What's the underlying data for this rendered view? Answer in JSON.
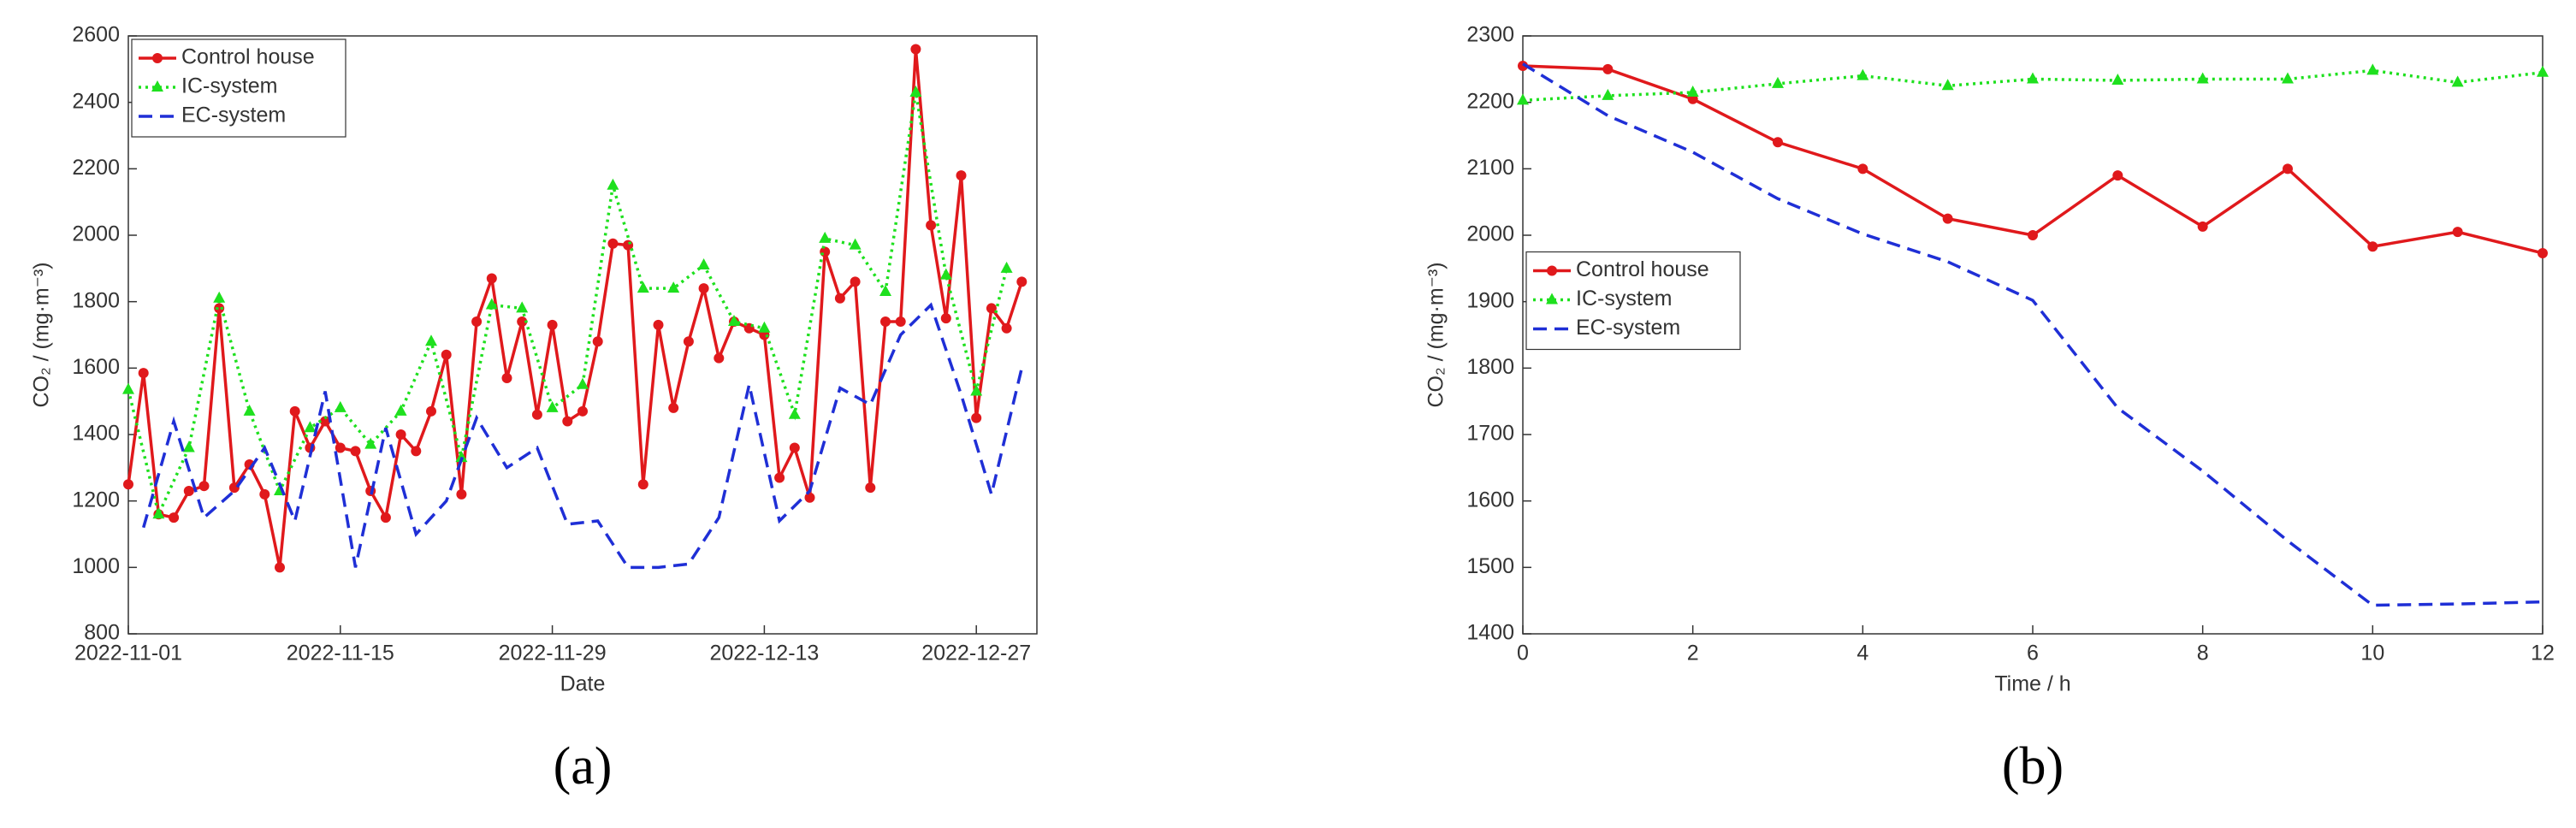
{
  "chart_data": [
    {
      "type": "line",
      "caption": "(a)",
      "xlabel": "Date",
      "ylabel": "CO₂ / (mg·m⁻³)",
      "xlim": [
        "2022-11-01",
        "2022-12-31"
      ],
      "xticks": [
        "2022-11-01",
        "2022-11-15",
        "2022-11-29",
        "2022-12-13",
        "2022-12-27"
      ],
      "ylim": [
        800,
        2600
      ],
      "yticks": [
        800,
        1000,
        1200,
        1400,
        1600,
        1800,
        2000,
        2200,
        2400,
        2600
      ],
      "legend": "upper left",
      "series": [
        {
          "name": "Control house",
          "color": "#e0191c",
          "marker": "circle",
          "linestyle": "solid",
          "x": [
            "2022-11-01",
            "2022-11-02",
            "2022-11-03",
            "2022-11-04",
            "2022-11-05",
            "2022-11-06",
            "2022-11-07",
            "2022-11-08",
            "2022-11-09",
            "2022-11-10",
            "2022-11-11",
            "2022-11-12",
            "2022-11-13",
            "2022-11-14",
            "2022-11-15",
            "2022-11-16",
            "2022-11-17",
            "2022-11-18",
            "2022-11-19",
            "2022-11-20",
            "2022-11-21",
            "2022-11-22",
            "2022-11-23",
            "2022-11-24",
            "2022-11-25",
            "2022-11-26",
            "2022-11-27",
            "2022-11-28",
            "2022-11-29",
            "2022-11-30",
            "2022-12-01",
            "2022-12-02",
            "2022-12-03",
            "2022-12-04",
            "2022-12-05",
            "2022-12-06",
            "2022-12-07",
            "2022-12-08",
            "2022-12-09",
            "2022-12-10",
            "2022-12-11",
            "2022-12-12",
            "2022-12-13",
            "2022-12-14",
            "2022-12-15",
            "2022-12-16",
            "2022-12-17",
            "2022-12-18",
            "2022-12-19",
            "2022-12-20",
            "2022-12-21",
            "2022-12-22",
            "2022-12-23",
            "2022-12-24",
            "2022-12-25",
            "2022-12-26",
            "2022-12-27",
            "2022-12-28",
            "2022-12-29",
            "2022-12-30"
          ],
          "values": [
            1250,
            1585,
            1160,
            1150,
            1230,
            1245,
            1780,
            1240,
            1310,
            1220,
            1000,
            1470,
            1360,
            1440,
            1360,
            1350,
            1230,
            1150,
            1400,
            1350,
            1470,
            1640,
            1220,
            1740,
            1870,
            1570,
            1740,
            1460,
            1730,
            1440,
            1470,
            1680,
            1975,
            1970,
            1250,
            1730,
            1480,
            1680,
            1840,
            1630,
            1740,
            1720,
            1700,
            1270,
            1360,
            1210,
            1950,
            1810,
            1860,
            1240,
            1740,
            1740,
            2560,
            2030,
            1750,
            2180,
            1450,
            1780,
            1720,
            1860
          ]
        },
        {
          "name": "IC-system",
          "color": "#1ee01e",
          "marker": "triangle",
          "linestyle": "dotted",
          "x": [
            "2022-11-01",
            "2022-11-03",
            "2022-11-05",
            "2022-11-07",
            "2022-11-09",
            "2022-11-11",
            "2022-11-13",
            "2022-11-15",
            "2022-11-17",
            "2022-11-19",
            "2022-11-21",
            "2022-11-23",
            "2022-11-25",
            "2022-11-27",
            "2022-11-29",
            "2022-12-01",
            "2022-12-03",
            "2022-12-05",
            "2022-12-07",
            "2022-12-09",
            "2022-12-11",
            "2022-12-13",
            "2022-12-15",
            "2022-12-17",
            "2022-12-19",
            "2022-12-21",
            "2022-12-23",
            "2022-12-25",
            "2022-12-27",
            "2022-12-29"
          ],
          "values": [
            1535,
            1160,
            1360,
            1810,
            1470,
            1230,
            1420,
            1480,
            1370,
            1470,
            1680,
            1330,
            1790,
            1780,
            1480,
            1550,
            2150,
            1840,
            1840,
            1910,
            1740,
            1720,
            1460,
            1990,
            1970,
            1830,
            2430,
            1880,
            1530,
            1900
          ]
        },
        {
          "name": "EC-system",
          "color": "#1f2fd6",
          "marker": "none",
          "linestyle": "dashed",
          "x": [
            "2022-11-02",
            "2022-11-04",
            "2022-11-06",
            "2022-11-08",
            "2022-11-10",
            "2022-11-12",
            "2022-11-14",
            "2022-11-16",
            "2022-11-18",
            "2022-11-20",
            "2022-11-22",
            "2022-11-24",
            "2022-11-26",
            "2022-11-28",
            "2022-11-30",
            "2022-12-02",
            "2022-12-04",
            "2022-12-06",
            "2022-12-08",
            "2022-12-10",
            "2022-12-12",
            "2022-12-14",
            "2022-12-16",
            "2022-12-18",
            "2022-12-20",
            "2022-12-22",
            "2022-12-24",
            "2022-12-26",
            "2022-12-28",
            "2022-12-30"
          ],
          "values": [
            1120,
            1440,
            1150,
            1230,
            1360,
            1140,
            1530,
            1000,
            1420,
            1100,
            1200,
            1450,
            1300,
            1360,
            1130,
            1140,
            1000,
            1000,
            1010,
            1150,
            1550,
            1140,
            1230,
            1540,
            1490,
            1700,
            1790,
            1520,
            1220,
            1600
          ]
        }
      ]
    },
    {
      "type": "line",
      "caption": "(b)",
      "xlabel": "Time / h",
      "ylabel": "CO₂ / (mg·m⁻³)",
      "xlim": [
        0,
        12
      ],
      "xticks": [
        0,
        2,
        4,
        6,
        8,
        10,
        12
      ],
      "ylim": [
        1400,
        2300
      ],
      "yticks": [
        1400,
        1500,
        1600,
        1700,
        1800,
        1900,
        2000,
        2100,
        2200,
        2300
      ],
      "legend": "center left",
      "series": [
        {
          "name": "Control house",
          "color": "#e0191c",
          "marker": "circle",
          "linestyle": "solid",
          "x": [
            0,
            1,
            2,
            3,
            4,
            5,
            6,
            7,
            8,
            9,
            10,
            11,
            12
          ],
          "values": [
            2255,
            2250,
            2205,
            2140,
            2100,
            2025,
            2000,
            2090,
            2013,
            2100,
            1983,
            2005,
            1973
          ]
        },
        {
          "name": "IC-system",
          "color": "#1ee01e",
          "marker": "triangle",
          "linestyle": "dotted",
          "x": [
            0,
            1,
            2,
            3,
            4,
            5,
            6,
            7,
            8,
            9,
            10,
            11,
            12
          ],
          "values": [
            2203,
            2210,
            2215,
            2228,
            2240,
            2225,
            2235,
            2233,
            2235,
            2235,
            2248,
            2230,
            2245
          ]
        },
        {
          "name": "EC-system",
          "color": "#1f2fd6",
          "marker": "none",
          "linestyle": "dashed",
          "x": [
            0,
            1,
            2,
            3,
            4,
            5,
            6,
            7,
            8,
            9,
            10,
            11,
            12
          ],
          "values": [
            2258,
            2180,
            2125,
            2055,
            2002,
            1960,
            1902,
            1740,
            1645,
            1540,
            1443,
            1445,
            1448
          ]
        }
      ]
    }
  ]
}
